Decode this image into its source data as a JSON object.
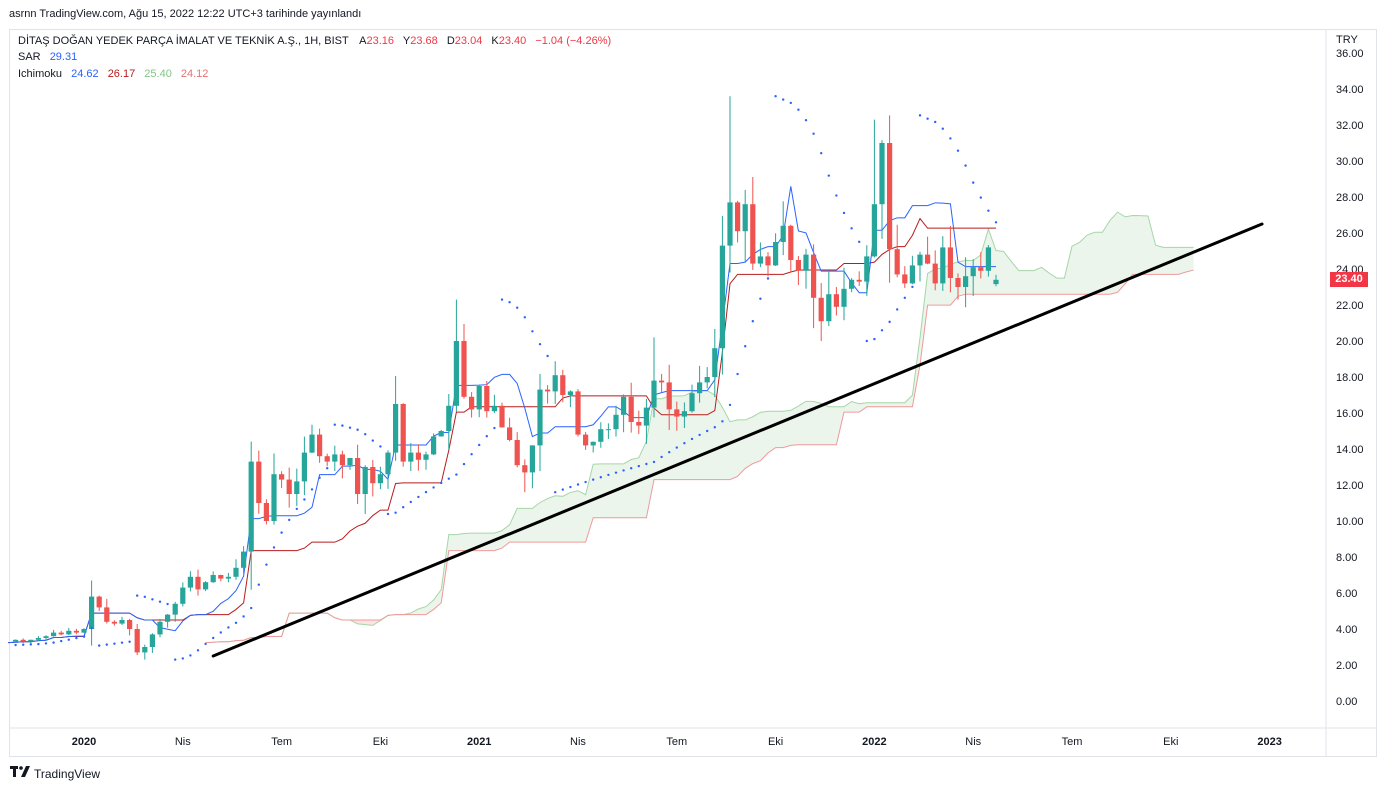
{
  "header": {
    "publish_line": "asrnn TradingView.com, Ağu 15, 2022 12:22 UTC+3 tarihinde yayınlandı"
  },
  "legend": {
    "symbol_title": "DİTAŞ DOĞAN YEDEK PARÇA İMALAT VE TEKNİK A.Ş., 1H, BIST",
    "ohlc": {
      "open_label": "A",
      "open": "23.16",
      "high_label": "Y",
      "high": "23.68",
      "low_label": "D",
      "low": "23.04",
      "close_label": "K",
      "close": "23.40",
      "change": "−1.04 (−4.26%)"
    },
    "sar": {
      "label": "SAR",
      "value": "29.31"
    },
    "ichimoku": {
      "label": "Ichimoku",
      "values": [
        "24.62",
        "26.17",
        "25.40",
        "24.12"
      ]
    }
  },
  "currency": "TRY",
  "last_price": "23.40",
  "footer": {
    "brand": "TradingView",
    "icon": "tradingview-logo-icon"
  },
  "colors": {
    "up": "#26a69a",
    "down": "#ef5350",
    "sar": "#2962ff",
    "conversion": "#2962ff",
    "base": "#b71c1c",
    "lead_a": "#a5d6a7",
    "lead_b": "#ef9a9a",
    "cloud_up": "rgba(67,160,71,0.10)",
    "cloud_down": "rgba(244,67,54,0.15)",
    "trendline": "#000000",
    "price_tag": "#f23645"
  },
  "chart_data": {
    "type": "candlestick",
    "title": "DİTAŞ DOĞAN YEDEK PARÇA İMALAT VE TEKNİK A.Ş., 1H, BIST",
    "currency": "TRY",
    "y_axis": {
      "range": [
        -1.5,
        36.5
      ],
      "ticks": [
        "0.00",
        "2.00",
        "4.00",
        "6.00",
        "8.00",
        "10.00",
        "12.00",
        "14.00",
        "16.00",
        "18.00",
        "20.00",
        "22.00",
        "24.00",
        "26.00",
        "28.00",
        "30.00",
        "32.00",
        "34.00",
        "36.00"
      ]
    },
    "x_axis": {
      "ticks": [
        {
          "label": "2020",
          "t": 0,
          "bold": true
        },
        {
          "label": "Nis",
          "t": 13
        },
        {
          "label": "Tem",
          "t": 26
        },
        {
          "label": "Eki",
          "t": 39
        },
        {
          "label": "2021",
          "t": 52,
          "bold": true
        },
        {
          "label": "Nis",
          "t": 65
        },
        {
          "label": "Tem",
          "t": 78
        },
        {
          "label": "Eki",
          "t": 91
        },
        {
          "label": "2022",
          "t": 104,
          "bold": true
        },
        {
          "label": "Nis",
          "t": 117
        },
        {
          "label": "Tem",
          "t": 130
        },
        {
          "label": "Eki",
          "t": 143
        },
        {
          "label": "2023",
          "t": 156,
          "bold": true
        }
      ]
    },
    "candles_weekly_closes": [
      3.3,
      3.4,
      3.3,
      3.4,
      3.5,
      3.6,
      3.8,
      3.7,
      3.9,
      3.8,
      4.0,
      5.8,
      5.2,
      4.4,
      4.3,
      4.5,
      4.0,
      2.7,
      3.0,
      3.7,
      4.4,
      4.8,
      5.4,
      6.3,
      6.9,
      6.2,
      6.6,
      7.0,
      6.8,
      6.9,
      7.4,
      8.3,
      13.3,
      11.0,
      10.0,
      12.6,
      12.3,
      11.5,
      12.2,
      13.8,
      14.8,
      13.6,
      13.3,
      13.7,
      13.1,
      13.5,
      11.5,
      13.0,
      12.1,
      12.6,
      13.8,
      16.5,
      13.3,
      13.8,
      13.4,
      13.7,
      14.7,
      15.0,
      16.4,
      20.0,
      16.9,
      16.2,
      17.5,
      16.1,
      16.4,
      15.2,
      14.5,
      13.1,
      12.7,
      14.2,
      17.3,
      17.2,
      18.1,
      17.0,
      17.2,
      14.8,
      14.2,
      14.4,
      15.1,
      15.1,
      15.9,
      16.9,
      15.5,
      15.3,
      16.3,
      17.8,
      17.7,
      16.2,
      15.8,
      16.1,
      17.1,
      17.7,
      18.0,
      19.6,
      25.3,
      27.7,
      26.1,
      27.6,
      24.3,
      24.7,
      24.2,
      25.5,
      26.4,
      24.5,
      23.9,
      24.8,
      22.4,
      21.1,
      22.6,
      21.9,
      22.9,
      23.4,
      23.3,
      24.7,
      27.6,
      31.0,
      25.1,
      23.7,
      23.2,
      24.2,
      24.8,
      24.3,
      23.2,
      25.2,
      23.5,
      23.0,
      23.6,
      24.1,
      23.9,
      25.2,
      23.4
    ],
    "trendline": {
      "from": {
        "t": 17,
        "price": 2.5
      },
      "to": {
        "t": 155,
        "price": 26.5
      }
    },
    "last": {
      "open": 23.16,
      "high": 23.68,
      "low": 23.04,
      "close": 23.4,
      "change": -1.04,
      "change_pct": -4.26
    },
    "indicators": {
      "sar": 29.31,
      "ichimoku": {
        "conversion": 24.62,
        "base": 26.17,
        "lead_a": 25.4,
        "lead_b": 24.12
      }
    },
    "grid": false,
    "legend_position": "top-left"
  }
}
